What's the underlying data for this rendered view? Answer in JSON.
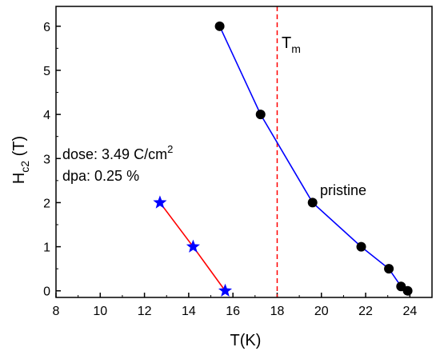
{
  "chart_data": {
    "type": "line",
    "xlabel": "T(K)",
    "ylabel": {
      "main": "H",
      "sub": "c2",
      "rest": " (T)"
    },
    "xlim": [
      8,
      25
    ],
    "ylim": [
      -0.15,
      6.45
    ],
    "xticks": [
      8,
      10,
      12,
      14,
      16,
      18,
      20,
      22,
      24
    ],
    "yticks": [
      0,
      1,
      2,
      3,
      4,
      5,
      6
    ],
    "grid": false,
    "series": [
      {
        "name": "pristine",
        "marker": "circle",
        "line_color": "#0000ff",
        "marker_color": "#000000",
        "x": [
          15.4,
          17.25,
          19.6,
          21.8,
          23.05,
          23.6,
          23.9
        ],
        "y": [
          6.0,
          4.0,
          2.0,
          1.0,
          0.5,
          0.1,
          0.0
        ]
      },
      {
        "name": "",
        "marker": "star",
        "line_color": "#ff0000",
        "marker_color": "#0000ff",
        "x": [
          12.7,
          14.2,
          15.65
        ],
        "y": [
          2.0,
          1.0,
          0.0
        ]
      }
    ],
    "vline": {
      "x": 18.0,
      "color": "#ff0000",
      "style": "dashed",
      "label_main": "T",
      "label_sub": "m"
    },
    "annotations": {
      "dose_prefix": "dose: 3.49 C/cm",
      "dose_sup": "2",
      "dpa": "dpa: 0.25 %",
      "series_label": "pristine"
    }
  }
}
